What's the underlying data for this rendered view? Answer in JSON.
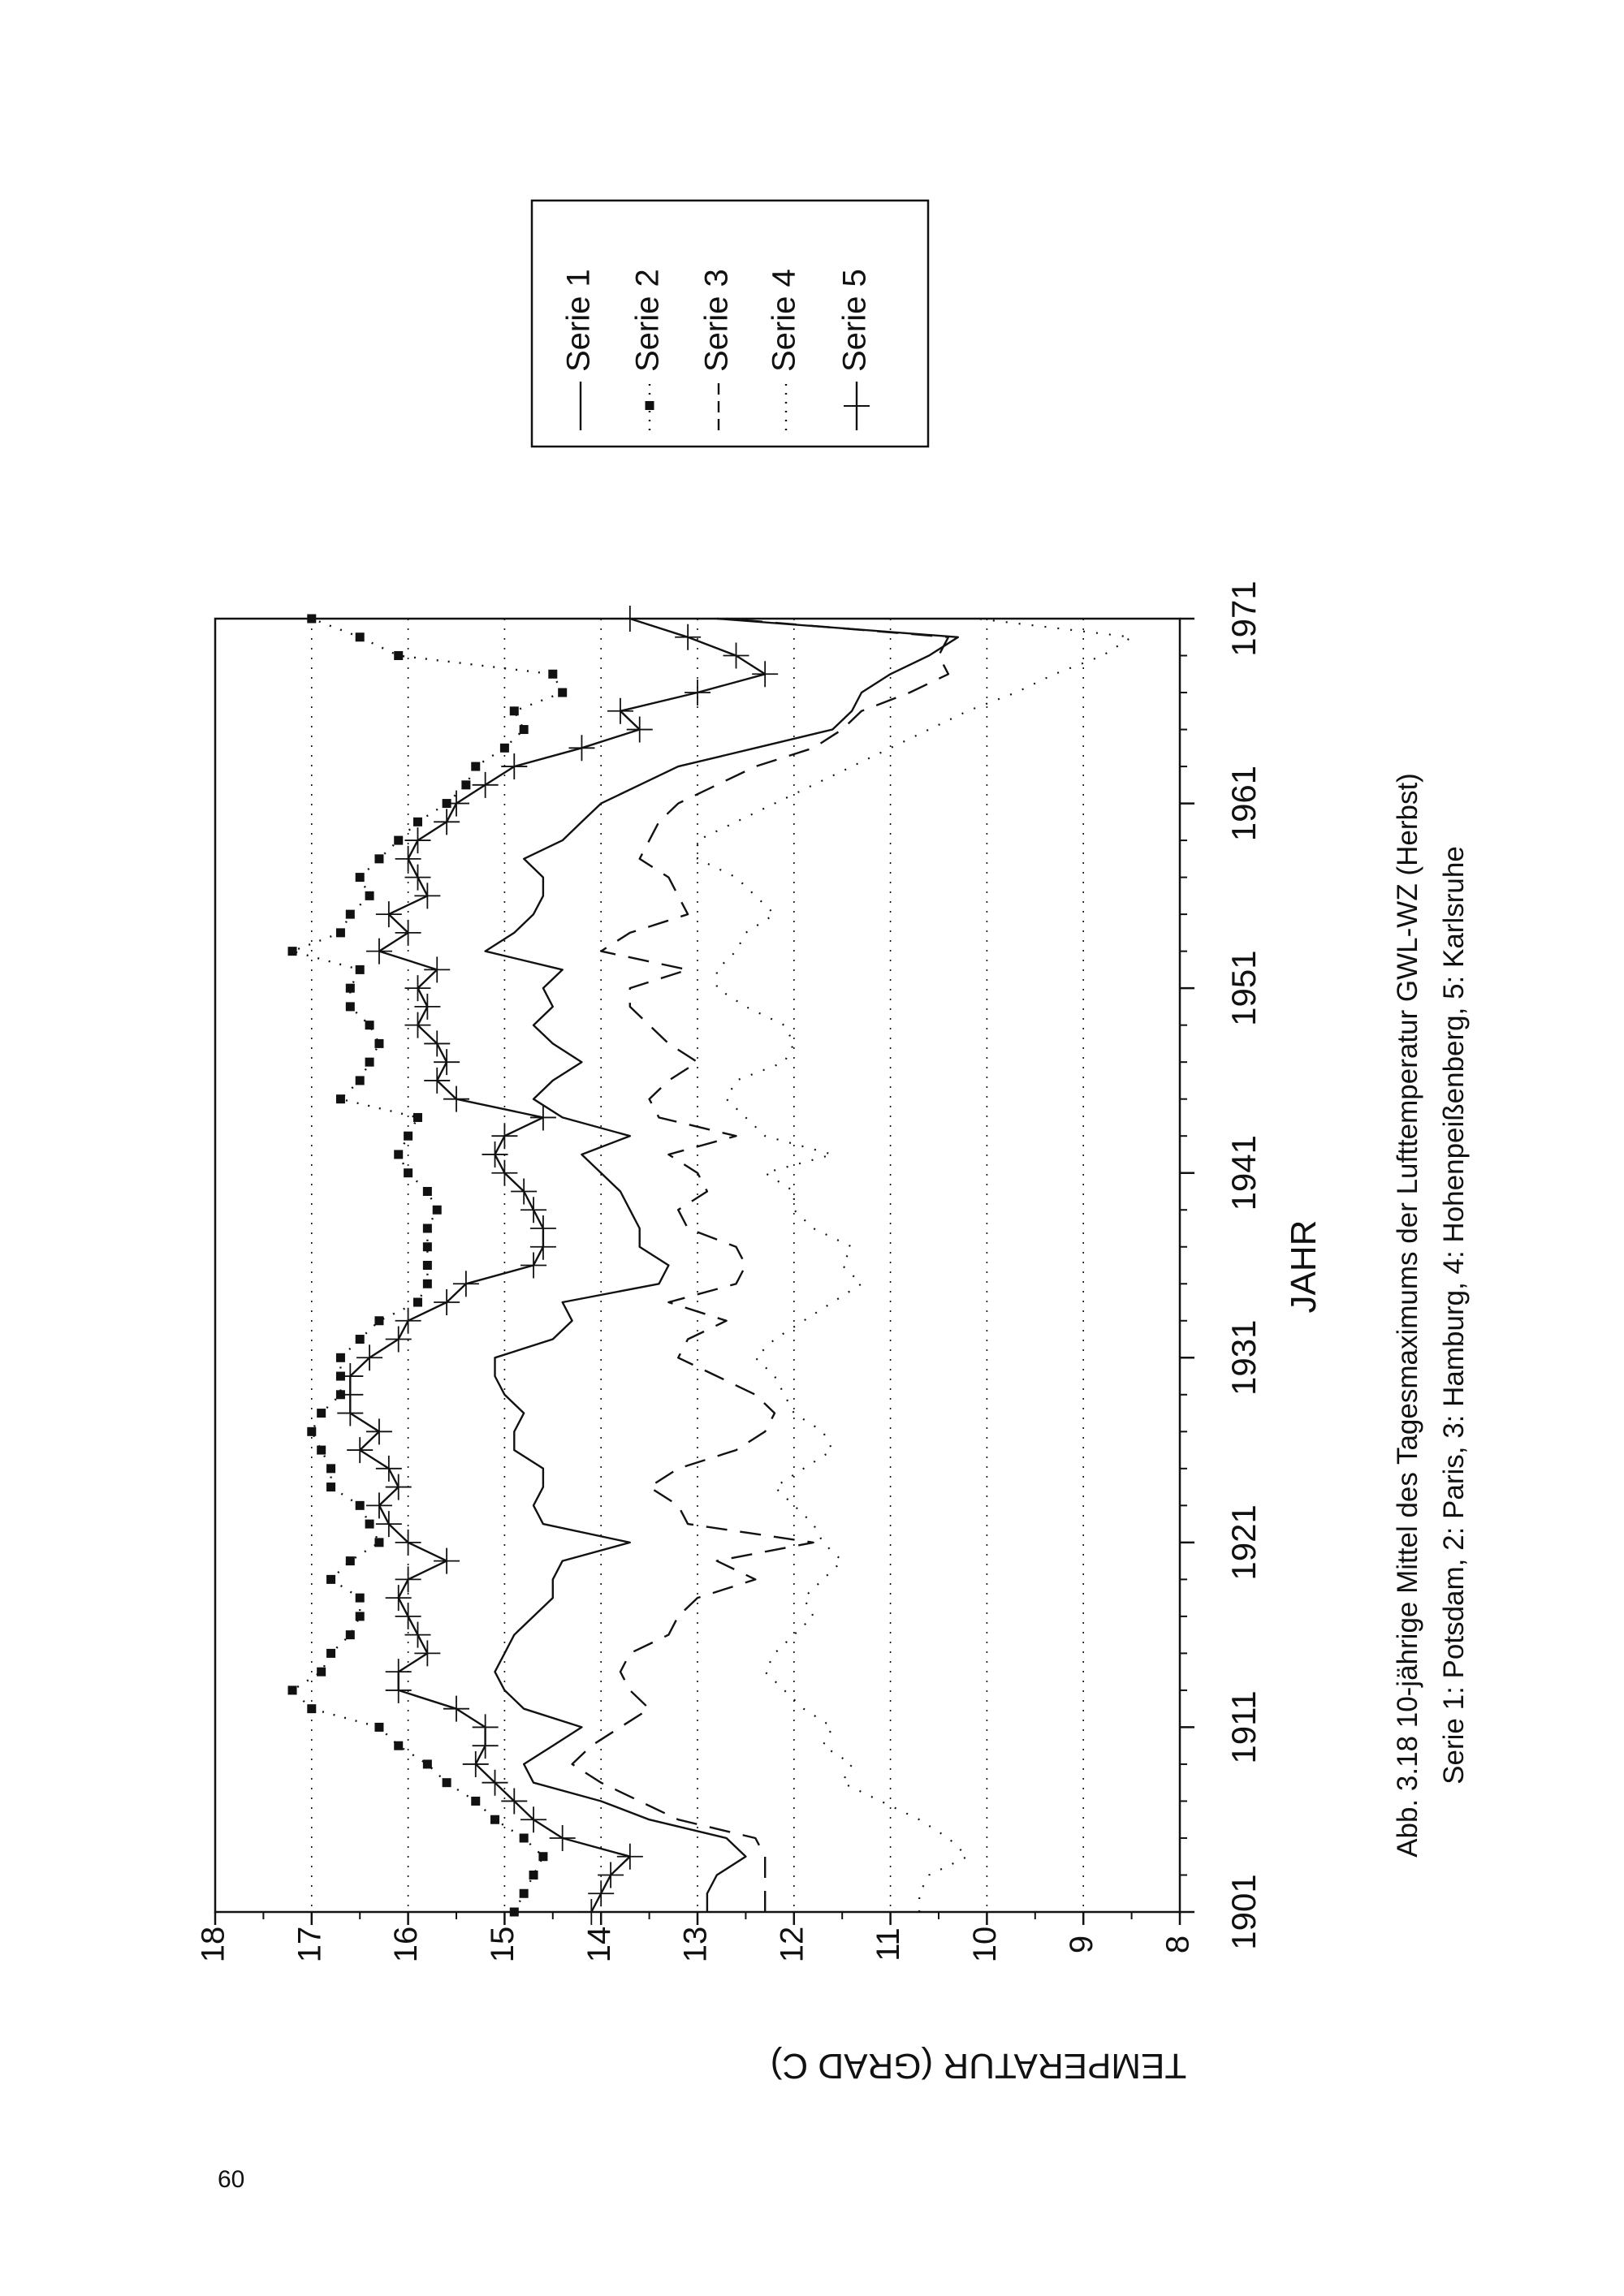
{
  "page": {
    "number": "60"
  },
  "caption": {
    "line1": "Abb. 3.18 10-jährige Mittel des Tagesmaximums der Lufttemperatur GWL-WZ (Herbst)",
    "line2": "Serie 1: Potsdam, 2: Paris, 3: Hamburg, 4: Hohenpeißenberg, 5: Karlsruhe"
  },
  "colors": {
    "ink": "#111111",
    "background": "#ffffff"
  },
  "chart_data": {
    "type": "line",
    "orientation": "rotated 90° counter-clockwise on the page",
    "xlabel": "JAHR",
    "ylabel": "TEMPERATUR (GRAD C)",
    "xlim": [
      1901,
      1971
    ],
    "ylim": [
      8,
      18
    ],
    "xticks": [
      "1901",
      "1911",
      "1921",
      "1931",
      "1941",
      "1951",
      "1961",
      "1971"
    ],
    "yticks": [
      "8",
      "9",
      "10",
      "11",
      "12",
      "13",
      "14",
      "15",
      "16",
      "17",
      "18"
    ],
    "grid": "dotted horizontal lines",
    "legend_position": "top-right",
    "x": [
      1901,
      1902,
      1903,
      1904,
      1905,
      1906,
      1907,
      1908,
      1909,
      1910,
      1911,
      1912,
      1913,
      1914,
      1915,
      1916,
      1917,
      1918,
      1919,
      1920,
      1921,
      1922,
      1923,
      1924,
      1925,
      1926,
      1927,
      1928,
      1929,
      1930,
      1931,
      1932,
      1933,
      1934,
      1935,
      1936,
      1937,
      1938,
      1939,
      1940,
      1941,
      1942,
      1943,
      1944,
      1945,
      1946,
      1947,
      1948,
      1949,
      1950,
      1951,
      1952,
      1953,
      1954,
      1955,
      1956,
      1957,
      1958,
      1959,
      1960,
      1961,
      1962,
      1963,
      1964,
      1965,
      1966,
      1967,
      1968,
      1969,
      1970,
      1971
    ],
    "series": [
      {
        "name": "Serie 1",
        "style": "solid",
        "values": [
          12.9,
          12.9,
          12.8,
          12.5,
          12.7,
          13.5,
          14.0,
          14.7,
          14.8,
          14.5,
          14.2,
          14.8,
          15.0,
          15.1,
          15.0,
          14.9,
          14.7,
          14.5,
          14.5,
          14.4,
          13.7,
          14.6,
          14.7,
          14.6,
          14.6,
          14.9,
          14.9,
          14.8,
          15.0,
          15.1,
          15.1,
          14.5,
          14.3,
          14.4,
          13.4,
          13.3,
          13.6,
          13.6,
          13.7,
          13.8,
          14.0,
          14.2,
          13.7,
          14.4,
          14.7,
          14.5,
          14.2,
          14.5,
          14.7,
          14.5,
          14.6,
          14.4,
          15.2,
          14.9,
          14.7,
          14.6,
          14.6,
          14.8,
          14.4,
          14.2,
          14.0,
          13.6,
          13.2,
          12.4,
          11.6,
          11.4,
          11.3,
          11.0,
          10.6,
          10.3,
          12.8
        ]
      },
      {
        "name": "Serie 2",
        "style": "dotted-squares",
        "values": [
          14.9,
          14.8,
          14.7,
          14.6,
          14.8,
          15.1,
          15.3,
          15.6,
          15.8,
          16.1,
          16.3,
          17.0,
          17.2,
          16.9,
          16.8,
          16.6,
          16.5,
          16.5,
          16.8,
          16.6,
          16.3,
          16.4,
          16.5,
          16.8,
          16.8,
          16.9,
          17.0,
          16.9,
          16.7,
          16.7,
          16.7,
          16.5,
          16.3,
          15.9,
          15.8,
          15.8,
          15.8,
          15.8,
          15.7,
          15.8,
          16.0,
          16.1,
          16.0,
          15.9,
          16.7,
          16.5,
          16.4,
          16.3,
          16.4,
          16.6,
          16.6,
          16.5,
          17.2,
          16.7,
          16.6,
          16.4,
          16.5,
          16.3,
          16.1,
          15.9,
          15.6,
          15.4,
          15.3,
          15.0,
          14.8,
          14.9,
          14.4,
          14.5,
          16.1,
          16.5,
          17.0
        ]
      },
      {
        "name": "Serie 3",
        "style": "dashed",
        "values": [
          12.3,
          12.3,
          12.3,
          12.3,
          12.4,
          13.2,
          13.6,
          14.0,
          14.3,
          14.1,
          13.8,
          13.5,
          13.7,
          13.8,
          13.7,
          13.3,
          13.2,
          13.0,
          12.4,
          12.8,
          11.8,
          13.1,
          13.2,
          13.5,
          13.2,
          12.6,
          12.3,
          12.2,
          12.4,
          12.8,
          13.2,
          13.1,
          12.7,
          13.3,
          12.6,
          12.5,
          12.6,
          13.1,
          13.2,
          12.9,
          13.0,
          13.3,
          12.6,
          13.4,
          13.5,
          13.3,
          13.0,
          13.3,
          13.5,
          13.7,
          13.7,
          13.1,
          14.0,
          13.7,
          13.1,
          13.2,
          13.3,
          13.6,
          13.5,
          13.4,
          13.2,
          12.8,
          12.4,
          11.8,
          11.5,
          11.3,
          10.8,
          10.4,
          10.5,
          10.4,
          12.7
        ]
      },
      {
        "name": "Serie 4",
        "style": "fine-dotted",
        "values": [
          10.7,
          10.7,
          10.6,
          10.2,
          10.4,
          10.7,
          11.1,
          11.5,
          11.4,
          11.7,
          11.6,
          11.9,
          12.1,
          12.3,
          12.2,
          12.0,
          11.8,
          11.9,
          11.7,
          11.5,
          11.7,
          11.8,
          12.0,
          12.2,
          11.9,
          11.6,
          11.7,
          12.0,
          12.1,
          12.2,
          12.4,
          12.2,
          11.9,
          11.6,
          11.3,
          11.5,
          11.4,
          11.8,
          12.0,
          12.0,
          12.3,
          11.6,
          12.3,
          12.5,
          12.7,
          12.6,
          12.1,
          12.0,
          12.1,
          12.5,
          12.8,
          12.8,
          12.6,
          12.5,
          12.2,
          12.4,
          12.6,
          13.0,
          13.0,
          12.6,
          12.2,
          11.8,
          11.4,
          11.0,
          10.6,
          10.2,
          9.7,
          9.3,
          8.8,
          8.5,
          10.1
        ]
      },
      {
        "name": "Serie 5",
        "style": "solid-plus",
        "values": [
          14.1,
          14.0,
          13.9,
          13.7,
          14.4,
          14.7,
          14.9,
          15.1,
          15.3,
          15.2,
          15.2,
          15.5,
          16.1,
          16.1,
          15.8,
          15.9,
          16.0,
          16.1,
          16.0,
          15.6,
          16.0,
          16.2,
          16.3,
          16.1,
          16.2,
          16.5,
          16.3,
          16.6,
          16.6,
          16.6,
          16.4,
          16.1,
          16.0,
          15.6,
          15.4,
          14.7,
          14.6,
          14.6,
          14.7,
          14.8,
          15.0,
          15.1,
          15.0,
          14.6,
          15.5,
          15.7,
          15.6,
          15.7,
          15.9,
          15.8,
          15.9,
          15.7,
          16.3,
          16.0,
          16.2,
          15.8,
          15.9,
          16.0,
          15.9,
          15.6,
          15.5,
          15.2,
          14.9,
          14.2,
          13.6,
          13.8,
          13.0,
          12.3,
          12.6,
          13.1,
          13.7
        ]
      }
    ]
  }
}
